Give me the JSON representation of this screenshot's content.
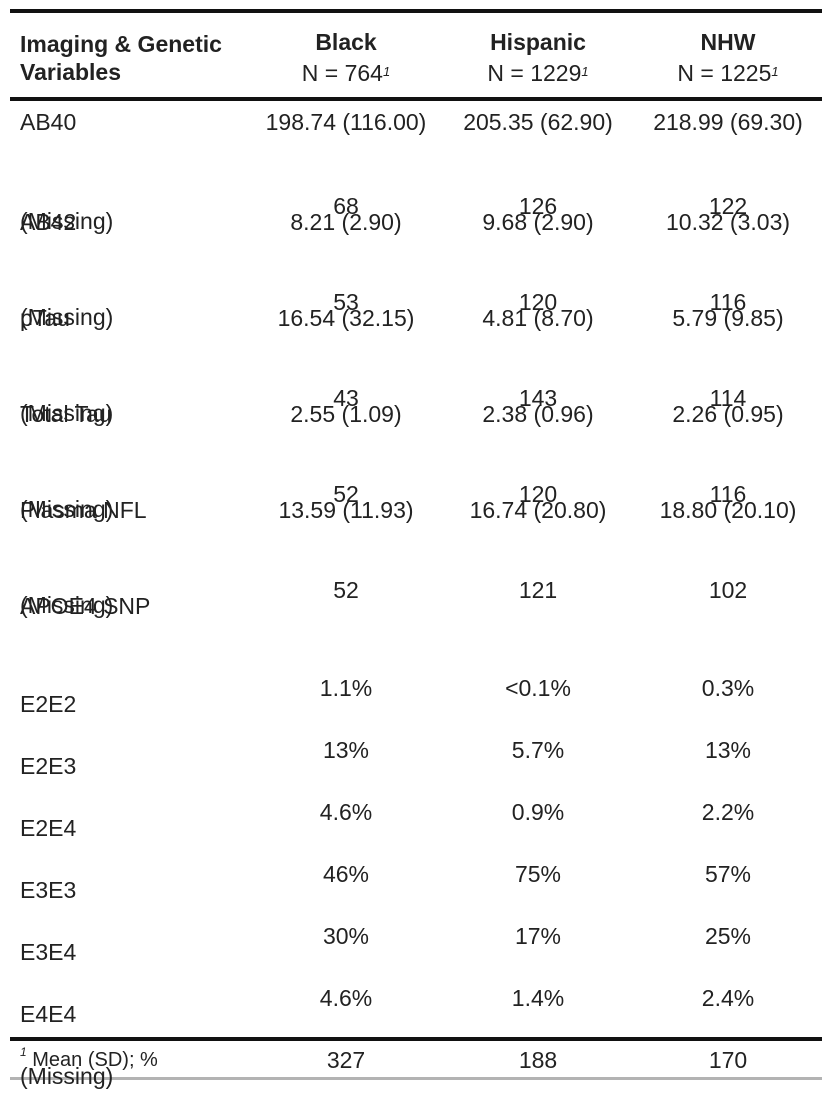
{
  "header": {
    "variable_line1": "Imaging & Genetic",
    "variable_line2": "Variables",
    "groups": [
      {
        "name": "Black",
        "n": "N = 764",
        "mark": "1"
      },
      {
        "name": "Hispanic",
        "n": "N = 1229",
        "mark": "1"
      },
      {
        "name": "NHW",
        "n": "N = 1225",
        "mark": "1"
      }
    ]
  },
  "rows": [
    {
      "label": "AB40",
      "values": [
        "198.74 (116.00)",
        "205.35 (62.90)",
        "218.99 (69.30)"
      ]
    },
    {
      "label": "(Missing)",
      "values": [
        "68",
        "126",
        "122"
      ]
    },
    {
      "label": "AB42",
      "values": [
        "8.21 (2.90)",
        "9.68 (2.90)",
        "10.32 (3.03)"
      ]
    },
    {
      "label": "(Missing)",
      "values": [
        "53",
        "120",
        "116"
      ]
    },
    {
      "label": "pTau",
      "values": [
        "16.54 (32.15)",
        "4.81 (8.70)",
        "5.79 (9.85)"
      ]
    },
    {
      "label": "(Missing)",
      "values": [
        "43",
        "143",
        "114"
      ]
    },
    {
      "label": "Total Tau",
      "values": [
        "2.55 (1.09)",
        "2.38 (0.96)",
        "2.26 (0.95)"
      ]
    },
    {
      "label": "(Missing)",
      "values": [
        "52",
        "120",
        "116"
      ]
    },
    {
      "label": "Plasma NFL",
      "values": [
        "13.59 (11.93)",
        "16.74 (20.80)",
        "18.80 (20.10)"
      ]
    },
    {
      "label": "(Missing)",
      "values": [
        "52",
        "121",
        "102"
      ]
    },
    {
      "label": "APOE4 SNP",
      "values": [
        "",
        "",
        ""
      ]
    },
    {
      "label": "E2E2",
      "values": [
        "1.1%",
        "<0.1%",
        "0.3%"
      ]
    },
    {
      "label": "E2E3",
      "values": [
        "13%",
        "5.7%",
        "13%"
      ]
    },
    {
      "label": "E2E4",
      "values": [
        "4.6%",
        "0.9%",
        "2.2%"
      ]
    },
    {
      "label": "E3E3",
      "values": [
        "46%",
        "75%",
        "57%"
      ]
    },
    {
      "label": "E3E4",
      "values": [
        "30%",
        "17%",
        "25%"
      ]
    },
    {
      "label": "E4E4",
      "values": [
        "4.6%",
        "1.4%",
        "2.4%"
      ]
    },
    {
      "label": "(Missing)",
      "values": [
        "327",
        "188",
        "170"
      ]
    }
  ],
  "footnote": {
    "mark": "1",
    "text": "Mean (SD); %"
  }
}
